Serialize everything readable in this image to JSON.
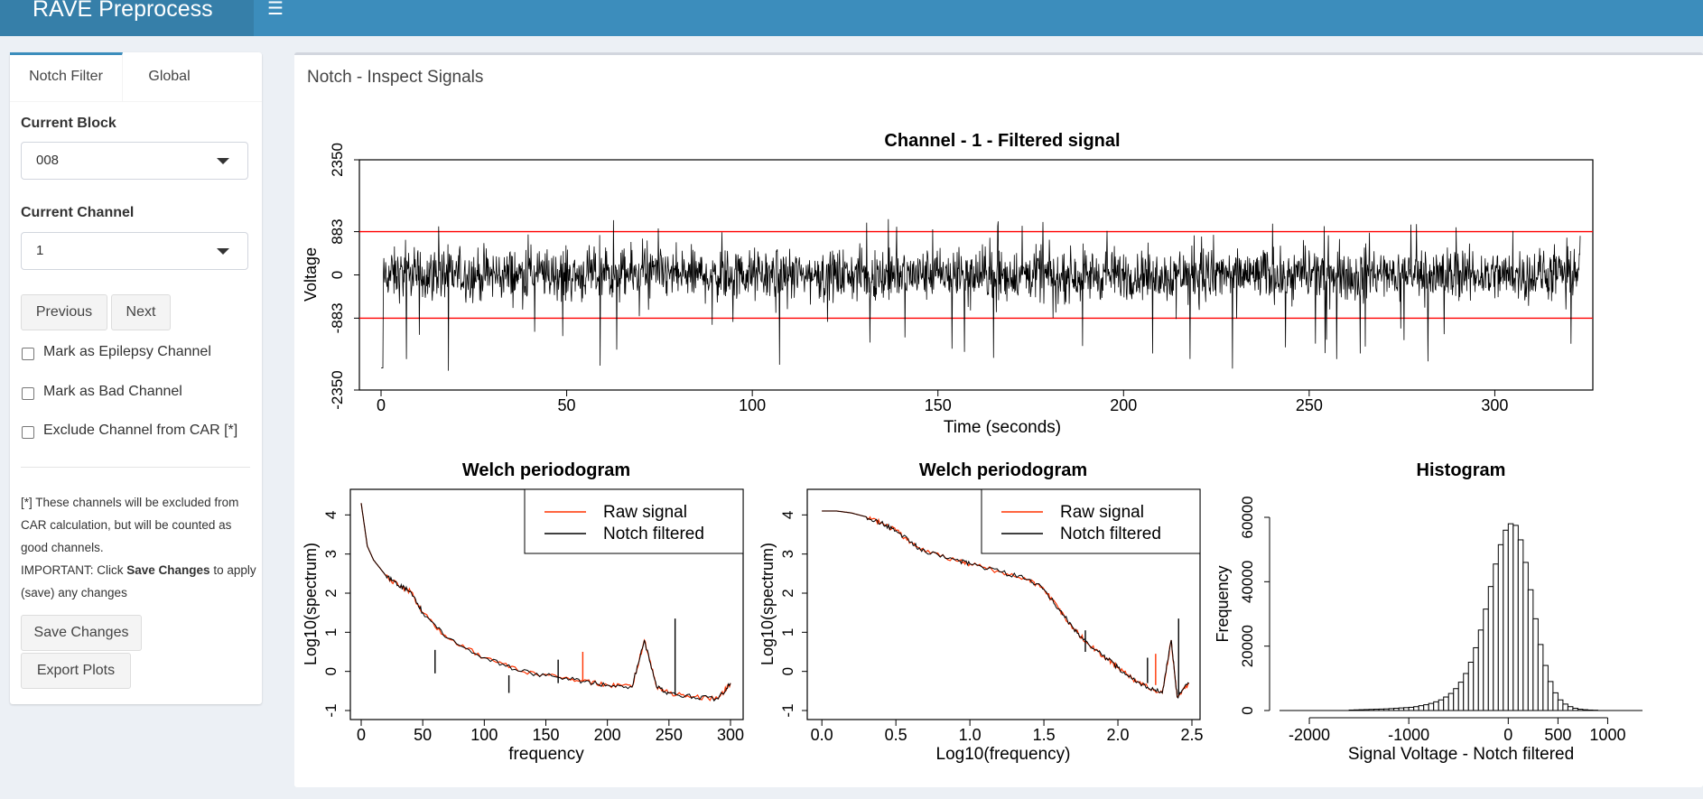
{
  "app": {
    "brand": "RAVE Preprocess",
    "menu_icon": "hamburger-icon"
  },
  "sidebar": {
    "tabs": [
      {
        "label": "Notch Filter",
        "active": true
      },
      {
        "label": "Global",
        "active": false
      }
    ],
    "block": {
      "label": "Current Block",
      "value": "008"
    },
    "channel": {
      "label": "Current Channel",
      "value": "1"
    },
    "buttons": {
      "previous": "Previous",
      "next": "Next",
      "save": "Save Changes",
      "export": "Export Plots"
    },
    "checkboxes": [
      {
        "label": "Mark as Epilepsy Channel",
        "checked": false
      },
      {
        "label": "Mark as Bad Channel",
        "checked": false
      },
      {
        "label": "Exclude Channel from CAR [*]",
        "checked": false
      }
    ],
    "note": {
      "line1": "[*] These channels will be excluded from CAR calculation, but will be counted as good channels.",
      "important_prefix": "IMPORTANT: Click ",
      "important_bold": "Save Changes",
      "important_suffix": " to apply (save) any changes"
    }
  },
  "main": {
    "title": "Notch - Inspect Signals"
  },
  "chart_data": [
    {
      "type": "line",
      "title": "Channel - 1 - Filtered signal",
      "xlabel": "Time (seconds)",
      "ylabel": "Voltage",
      "x_ticks": [
        0,
        50,
        100,
        150,
        200,
        250,
        300
      ],
      "y_ticks": [
        "-2350",
        "-883",
        "0",
        "883",
        "2350"
      ],
      "xlim": [
        0,
        323
      ],
      "ylim": [
        -2350,
        2350
      ],
      "hlines": [
        883,
        -883
      ],
      "hline_color": "#ff0000",
      "series": [
        {
          "color": "#000000"
        }
      ]
    },
    {
      "type": "line",
      "title": "Welch periodogram",
      "xlabel": "frequency",
      "ylabel": "Log10(spectrum)",
      "x_ticks": [
        0,
        50,
        100,
        150,
        200,
        250,
        300
      ],
      "y_ticks": [
        -1,
        0,
        1,
        2,
        3,
        4
      ],
      "xlim": [
        0,
        300
      ],
      "ylim": [
        -1,
        4.4
      ],
      "legend": {
        "placement": "top-right"
      },
      "series": [
        {
          "name": "Raw signal",
          "color": "#ff3300",
          "x": [
            0,
            5,
            10,
            20,
            30,
            40,
            50,
            70,
            100,
            130,
            160,
            180,
            200,
            220,
            230,
            240,
            250,
            270,
            290,
            300
          ],
          "y": [
            4.3,
            3.2,
            2.85,
            2.45,
            2.2,
            2.05,
            1.5,
            0.85,
            0.35,
            0.0,
            -0.15,
            -0.25,
            -0.35,
            -0.4,
            0.8,
            -0.4,
            -0.55,
            -0.65,
            -0.7,
            -0.3
          ]
        },
        {
          "name": "Notch filtered",
          "color": "#000000",
          "x": [
            0,
            5,
            10,
            20,
            30,
            40,
            50,
            70,
            100,
            130,
            160,
            180,
            200,
            220,
            230,
            240,
            250,
            270,
            290,
            300
          ],
          "y": [
            4.3,
            3.2,
            2.85,
            2.45,
            2.2,
            2.05,
            1.5,
            0.85,
            0.35,
            0.0,
            -0.15,
            -0.25,
            -0.35,
            -0.4,
            0.8,
            -0.4,
            -0.55,
            -0.65,
            -0.7,
            -0.3
          ]
        }
      ]
    },
    {
      "type": "line",
      "title": "Welch periodogram",
      "xlabel": "Log10(frequency)",
      "ylabel": "Log10(spectrum)",
      "x_ticks": [
        "0.0",
        "0.5",
        "1.0",
        "1.5",
        "2.0",
        "2.5"
      ],
      "y_ticks": [
        -1,
        0,
        1,
        2,
        3,
        4
      ],
      "xlim": [
        -0.05,
        2.5
      ],
      "ylim": [
        -1,
        4.4
      ],
      "legend": {
        "placement": "top-right"
      },
      "series": [
        {
          "name": "Raw signal",
          "color": "#ff3300",
          "x": [
            0.0,
            0.1,
            0.2,
            0.3,
            0.4,
            0.5,
            0.6,
            0.7,
            0.9,
            1.0,
            1.2,
            1.4,
            1.5,
            1.6,
            1.7,
            1.8,
            1.9,
            2.0,
            2.1,
            2.2,
            2.3,
            2.36,
            2.4,
            2.48
          ],
          "y": [
            4.1,
            4.1,
            4.05,
            3.95,
            3.8,
            3.6,
            3.3,
            3.05,
            2.85,
            2.75,
            2.55,
            2.35,
            2.1,
            1.6,
            1.1,
            0.7,
            0.4,
            0.1,
            -0.2,
            -0.4,
            -0.55,
            0.8,
            -0.65,
            -0.3
          ]
        },
        {
          "name": "Notch filtered",
          "color": "#000000",
          "x": [
            0.0,
            0.1,
            0.2,
            0.3,
            0.4,
            0.5,
            0.6,
            0.7,
            0.9,
            1.0,
            1.2,
            1.4,
            1.5,
            1.6,
            1.7,
            1.8,
            1.9,
            2.0,
            2.1,
            2.2,
            2.3,
            2.36,
            2.4,
            2.48
          ],
          "y": [
            4.1,
            4.1,
            4.05,
            3.95,
            3.8,
            3.6,
            3.3,
            3.05,
            2.85,
            2.75,
            2.55,
            2.35,
            2.1,
            1.6,
            1.1,
            0.7,
            0.4,
            0.1,
            -0.2,
            -0.4,
            -0.55,
            0.8,
            -0.65,
            -0.3
          ]
        }
      ]
    },
    {
      "type": "bar",
      "title": "Histogram",
      "xlabel": "Signal Voltage - Notch filtered",
      "ylabel": "Frequency",
      "x_ticks": [
        -2000,
        -1000,
        0,
        500,
        1000
      ],
      "y_ticks": [
        0,
        20000,
        40000,
        60000
      ],
      "xlim": [
        -2300,
        1350
      ],
      "ylim": [
        0,
        60000
      ],
      "bin_width": 50,
      "bin_starts": [
        -1600,
        -1550,
        -1500,
        -1450,
        -1400,
        -1350,
        -1300,
        -1250,
        -1200,
        -1150,
        -1100,
        -1050,
        -1000,
        -950,
        -900,
        -850,
        -800,
        -750,
        -700,
        -650,
        -600,
        -550,
        -500,
        -450,
        -400,
        -350,
        -300,
        -250,
        -200,
        -150,
        -100,
        -50,
        0,
        50,
        100,
        150,
        200,
        250,
        300,
        350,
        400,
        450,
        500,
        550,
        600,
        650,
        700,
        750,
        800,
        850
      ],
      "values": [
        150,
        200,
        250,
        300,
        350,
        400,
        450,
        500,
        600,
        700,
        800,
        900,
        1000,
        1200,
        1500,
        1800,
        2200,
        2700,
        3300,
        4200,
        5300,
        6800,
        8800,
        11500,
        15000,
        19500,
        25000,
        31500,
        38500,
        45500,
        51500,
        56000,
        58000,
        57500,
        53000,
        46000,
        37500,
        28500,
        20500,
        14000,
        9000,
        5500,
        3300,
        2000,
        1200,
        700,
        400,
        250,
        150,
        100
      ]
    }
  ]
}
